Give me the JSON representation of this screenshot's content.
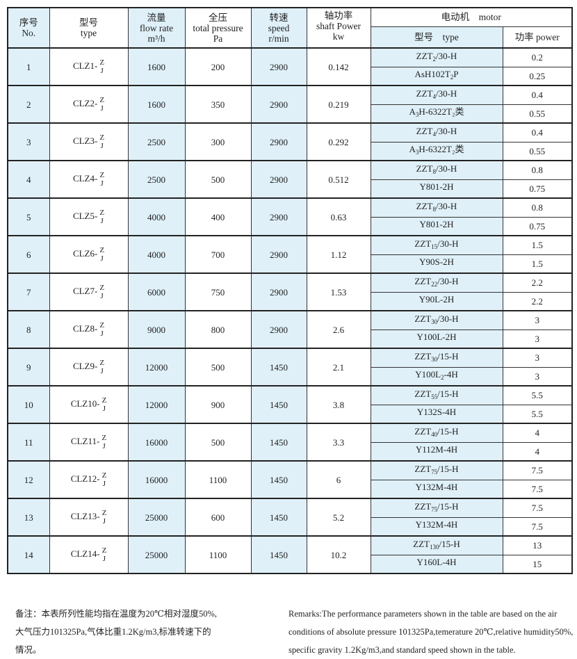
{
  "header": {
    "no": [
      "序号",
      "No."
    ],
    "type": [
      "型号",
      "type"
    ],
    "flow": [
      "流量",
      "flow rate",
      "m³/h"
    ],
    "pressure": [
      "全压",
      "total pressure",
      "Pa"
    ],
    "speed": [
      "转速",
      "speed",
      "r/min"
    ],
    "shaft": [
      "轴功率",
      "shaft Power",
      "kw"
    ],
    "motor": "电动机　motor",
    "motor_type": "型号　type",
    "motor_power": "功率 power"
  },
  "rows": [
    {
      "no": "1",
      "model": "CLZ1-",
      "flow": "1600",
      "pressure": "200",
      "speed": "2900",
      "shaft": "0.142",
      "motors": [
        {
          "type": [
            "ZZT",
            "2",
            "/30-H"
          ],
          "power": "0.2"
        },
        {
          "type": [
            "AsH102T",
            "2",
            "P"
          ],
          "power": "0.25"
        }
      ]
    },
    {
      "no": "2",
      "model": "CLZ2-",
      "flow": "1600",
      "pressure": "350",
      "speed": "2900",
      "shaft": "0.219",
      "motors": [
        {
          "type": [
            "ZZT",
            "4",
            "/30-H"
          ],
          "power": "0.4"
        },
        {
          "type": [
            "A",
            "3",
            "H-6322T₂类"
          ],
          "power": "0.55"
        }
      ]
    },
    {
      "no": "3",
      "model": "CLZ3-",
      "flow": "2500",
      "pressure": "300",
      "speed": "2900",
      "shaft": "0.292",
      "motors": [
        {
          "type": [
            "ZZT",
            "4",
            "/30-H"
          ],
          "power": "0.4"
        },
        {
          "type": [
            "A",
            "3",
            "H-6322T₂类"
          ],
          "power": "0.55"
        }
      ]
    },
    {
      "no": "4",
      "model": "CLZ4-",
      "flow": "2500",
      "pressure": "500",
      "speed": "2900",
      "shaft": "0.512",
      "motors": [
        {
          "type": [
            "ZZT",
            "8",
            "/30-H"
          ],
          "power": "0.8"
        },
        {
          "type": [
            "Y801-2H",
            "",
            ""
          ],
          "power": "0.75"
        }
      ]
    },
    {
      "no": "5",
      "model": "CLZ5-",
      "flow": "4000",
      "pressure": "400",
      "speed": "2900",
      "shaft": "0.63",
      "motors": [
        {
          "type": [
            "ZZT",
            "8",
            "/30-H"
          ],
          "power": "0.8"
        },
        {
          "type": [
            "Y801-2H",
            "",
            ""
          ],
          "power": "0.75"
        }
      ]
    },
    {
      "no": "6",
      "model": "CLZ6-",
      "flow": "4000",
      "pressure": "700",
      "speed": "2900",
      "shaft": "1.12",
      "motors": [
        {
          "type": [
            "ZZT",
            "15",
            "/30-H"
          ],
          "power": "1.5"
        },
        {
          "type": [
            "Y90S-2H",
            "",
            ""
          ],
          "power": "1.5"
        }
      ]
    },
    {
      "no": "7",
      "model": "CLZ7-",
      "flow": "6000",
      "pressure": "750",
      "speed": "2900",
      "shaft": "1.53",
      "motors": [
        {
          "type": [
            "ZZT",
            "22",
            "/30-H"
          ],
          "power": "2.2"
        },
        {
          "type": [
            "Y90L-2H",
            "",
            ""
          ],
          "power": "2.2"
        }
      ]
    },
    {
      "no": "8",
      "model": "CLZ8-",
      "flow": "9000",
      "pressure": "800",
      "speed": "2900",
      "shaft": "2.6",
      "motors": [
        {
          "type": [
            "ZZT",
            "30",
            "/30-H"
          ],
          "power": "3"
        },
        {
          "type": [
            "Y100L-2H",
            "",
            ""
          ],
          "power": "3"
        }
      ]
    },
    {
      "no": "9",
      "model": "CLZ9-",
      "flow": "12000",
      "pressure": "500",
      "speed": "1450",
      "shaft": "2.1",
      "motors": [
        {
          "type": [
            "ZZT",
            "30",
            "/15-H"
          ],
          "power": "3"
        },
        {
          "type": [
            "Y100L",
            "2",
            "-4H"
          ],
          "power": "3"
        }
      ]
    },
    {
      "no": "10",
      "model": "CLZ10-",
      "flow": "12000",
      "pressure": "900",
      "speed": "1450",
      "shaft": "3.8",
      "motors": [
        {
          "type": [
            "ZZT",
            "55",
            "/15-H"
          ],
          "power": "5.5"
        },
        {
          "type": [
            "Y132S-4H",
            "",
            ""
          ],
          "power": "5.5"
        }
      ]
    },
    {
      "no": "11",
      "model": "CLZ11-",
      "flow": "16000",
      "pressure": "500",
      "speed": "1450",
      "shaft": "3.3",
      "motors": [
        {
          "type": [
            "ZZT",
            "40",
            "/15-H"
          ],
          "power": "4"
        },
        {
          "type": [
            "Y112M-4H",
            "",
            ""
          ],
          "power": "4"
        }
      ]
    },
    {
      "no": "12",
      "model": "CLZ12-",
      "flow": "16000",
      "pressure": "1100",
      "speed": "1450",
      "shaft": "6",
      "motors": [
        {
          "type": [
            "ZZT",
            "75",
            "/15-H"
          ],
          "power": "7.5"
        },
        {
          "type": [
            "Y132M-4H",
            "",
            ""
          ],
          "power": "7.5"
        }
      ]
    },
    {
      "no": "13",
      "model": "CLZ13-",
      "flow": "25000",
      "pressure": "600",
      "speed": "1450",
      "shaft": "5.2",
      "motors": [
        {
          "type": [
            "ZZT",
            "75",
            "/15-H"
          ],
          "power": "7.5"
        },
        {
          "type": [
            "Y132M-4H",
            "",
            ""
          ],
          "power": "7.5"
        }
      ]
    },
    {
      "no": "14",
      "model": "CLZ14-",
      "flow": "25000",
      "pressure": "1100",
      "speed": "1450",
      "shaft": "10.2",
      "motors": [
        {
          "type": [
            "ZZT",
            "130",
            "/15-H"
          ],
          "power": "13"
        },
        {
          "type": [
            "Y160L-4H",
            "",
            ""
          ],
          "power": "15"
        }
      ]
    }
  ],
  "model_suffix": [
    "Z",
    "J"
  ],
  "notes": {
    "cn": [
      "备注：本表所列性能均指在温度为20℃相对湿度50%,",
      "大气压力101325Pa,气体比重1.2Kg/m3,标准转速下的",
      "情况。"
    ],
    "en": [
      "Remarks:The performance parameters shown in the table are based on the air",
      "conditions of absolute pressure 101325Pa,temerature 20℃,relative humidity50%,",
      "specific gravity 1.2Kg/m3,and standard speed shown in the table."
    ]
  }
}
